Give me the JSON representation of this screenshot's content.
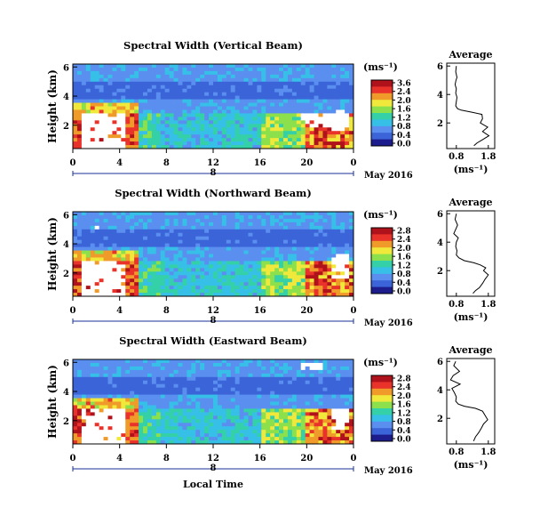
{
  "x_axis": {
    "ticks": [
      "0",
      "4",
      "8",
      "12",
      "16",
      "20",
      "0"
    ],
    "day_label": "8",
    "date_label": "May 2016",
    "xlabel": "Local Time"
  },
  "heatmap_y_axis": {
    "label": "Height (km)",
    "ticks": [
      "6",
      "4",
      "2"
    ]
  },
  "colorbar": {
    "unit": "(ms⁻¹)"
  },
  "average": {
    "title": "Average",
    "xlabel": "(ms⁻¹)",
    "y_ticks": [
      "6",
      "4",
      "2"
    ]
  },
  "colors": {
    "white": "#ffffff",
    "navy": "#1c1c8c",
    "blue": "#3a64d8",
    "blue_light": "#5a8ff0",
    "cyan": "#36c0e8",
    "teal": "#34d0a8",
    "green": "#8ce04c",
    "yellow": "#f0e83a",
    "orange": "#f09a2a",
    "red": "#e8322a",
    "dark_red": "#b0121c"
  },
  "chart_data": [
    {
      "type": "heatmap",
      "title": "Spectral Width (Vertical Beam)",
      "xlabel": "Local Time",
      "ylabel": "Height (km)",
      "x_ticks": [
        "0",
        "4",
        "8",
        "12",
        "16",
        "20",
        "0"
      ],
      "y_ticks": [
        "6",
        "4",
        "2"
      ],
      "colorbar_ticks": [
        "3.6",
        "2.4",
        "2.0",
        "1.6",
        "1.2",
        "0.8",
        "0.4",
        "0.0"
      ],
      "xlim": [
        0,
        24
      ],
      "ylim": [
        0.4,
        6.2
      ]
    },
    {
      "type": "line",
      "title": "Average",
      "xlabel": "(ms⁻¹)",
      "x_ticks": [
        "0.8",
        "1.8"
      ],
      "y_ticks": [
        "6",
        "4",
        "2"
      ],
      "xlim": [
        0.5,
        2.0
      ],
      "ylim": [
        0.2,
        6.2
      ],
      "x": [
        0.8,
        0.78,
        0.82,
        0.79,
        0.76,
        0.8,
        0.78,
        0.82,
        0.8,
        0.78,
        0.84,
        0.95,
        1.3,
        1.6,
        1.62,
        1.55,
        1.78,
        1.62,
        1.82,
        1.6,
        1.45,
        1.35
      ],
      "y": [
        6.0,
        5.6,
        5.2,
        5.0,
        4.7,
        4.4,
        4.1,
        3.8,
        3.5,
        3.2,
        3.0,
        2.9,
        2.75,
        2.6,
        2.3,
        2.0,
        1.7,
        1.4,
        1.1,
        0.8,
        0.6,
        0.4
      ]
    },
    {
      "type": "heatmap",
      "title": "Spectral Width (Northward Beam)",
      "xlabel": "Local Time",
      "ylabel": "Height (km)",
      "x_ticks": [
        "0",
        "4",
        "8",
        "12",
        "16",
        "20",
        "0"
      ],
      "y_ticks": [
        "6",
        "4",
        "2"
      ],
      "colorbar_ticks": [
        "2.8",
        "2.4",
        "2.0",
        "1.6",
        "1.2",
        "0.8",
        "0.4",
        "0.0"
      ],
      "xlim": [
        0,
        24
      ],
      "ylim": [
        0.4,
        6.2
      ]
    },
    {
      "type": "line",
      "title": "Average",
      "xlabel": "(ms⁻¹)",
      "x_ticks": [
        "0.8",
        "1.8"
      ],
      "y_ticks": [
        "6",
        "4",
        "2"
      ],
      "xlim": [
        0.5,
        2.0
      ],
      "ylim": [
        0.2,
        6.2
      ],
      "x": [
        0.8,
        0.76,
        0.84,
        0.78,
        0.72,
        0.86,
        0.8,
        0.78,
        0.82,
        0.8,
        0.88,
        1.05,
        1.35,
        1.55,
        1.72,
        1.65,
        1.8,
        1.7,
        1.62,
        1.52,
        1.4,
        1.32
      ],
      "y": [
        6.0,
        5.6,
        5.2,
        4.9,
        4.6,
        4.3,
        4.0,
        3.7,
        3.4,
        3.1,
        2.9,
        2.7,
        2.55,
        2.4,
        2.2,
        2.0,
        1.7,
        1.4,
        1.1,
        0.8,
        0.6,
        0.4
      ]
    },
    {
      "type": "heatmap",
      "title": "Spectral Width (Eastward Beam)",
      "xlabel": "Local Time",
      "ylabel": "Height (km)",
      "x_ticks": [
        "0",
        "4",
        "8",
        "12",
        "16",
        "20",
        "0"
      ],
      "y_ticks": [
        "6",
        "4",
        "2"
      ],
      "colorbar_ticks": [
        "2.8",
        "2.4",
        "2.0",
        "1.6",
        "1.2",
        "0.8",
        "0.4",
        "0.0"
      ],
      "xlim": [
        0,
        24
      ],
      "ylim": [
        0.4,
        6.2
      ]
    },
    {
      "type": "line",
      "title": "Average",
      "xlabel": "(ms⁻¹)",
      "x_ticks": [
        "0.8",
        "1.8"
      ],
      "y_ticks": [
        "6",
        "4",
        "2"
      ],
      "xlim": [
        0.5,
        2.0
      ],
      "ylim": [
        0.2,
        6.2
      ],
      "x": [
        0.78,
        0.72,
        0.9,
        0.7,
        0.62,
        0.92,
        0.66,
        0.74,
        0.8,
        0.78,
        0.86,
        1.05,
        1.4,
        1.62,
        1.7,
        1.78,
        1.65,
        1.58,
        1.5,
        1.4,
        1.34
      ],
      "y": [
        6.0,
        5.7,
        5.3,
        5.0,
        4.7,
        4.4,
        4.1,
        3.8,
        3.5,
        3.2,
        3.0,
        2.85,
        2.7,
        2.5,
        2.2,
        1.9,
        1.6,
        1.3,
        1.0,
        0.7,
        0.4
      ]
    }
  ]
}
